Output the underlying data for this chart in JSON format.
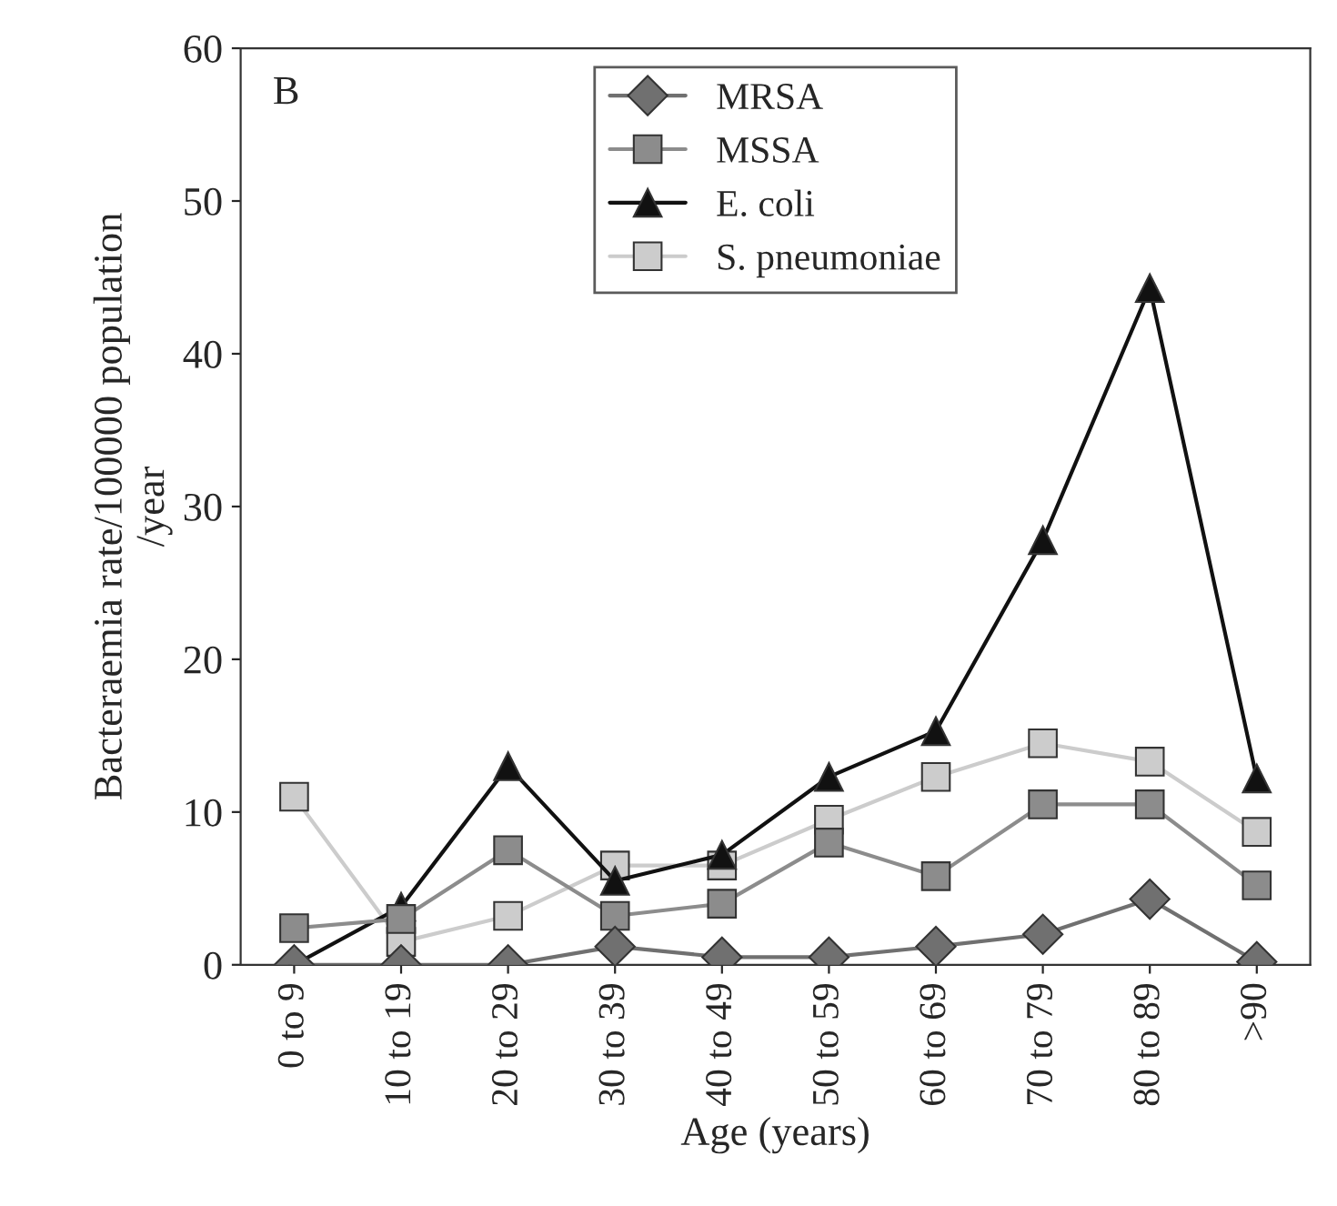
{
  "chart_data": {
    "type": "line",
    "xlabel": "Age (years)",
    "ylabel": "Bacteraemia rate/100000 population\n/year",
    "annotations": [
      "B"
    ],
    "categories": [
      "0 to 9",
      "10 to 19",
      "20 to 29",
      "30 to 39",
      "40 to 49",
      "50 to 59",
      "60 to 69",
      "70 to 79",
      "80 to 89",
      ">90"
    ],
    "series": [
      {
        "name": "MRSA",
        "color": "#707070",
        "marker": "diamond",
        "values": [
          0,
          0,
          0,
          1.2,
          0.5,
          0.5,
          1.2,
          2,
          4.3,
          0.2
        ]
      },
      {
        "name": "MSSA",
        "color": "#8c8c8c",
        "marker": "square",
        "values": [
          2.4,
          3,
          7.5,
          3.2,
          4,
          8,
          5.8,
          10.5,
          10.5,
          5.2
        ]
      },
      {
        "name": "E. coli",
        "color": "#111111",
        "marker": "triangle",
        "values": [
          0,
          3.8,
          13,
          5.5,
          7.2,
          12.3,
          15.3,
          27.8,
          44.3,
          12.2
        ]
      },
      {
        "name": "S. pneumoniae",
        "color": "#cccccc",
        "marker": "square",
        "values": [
          11,
          1.5,
          3.2,
          6.5,
          6.5,
          9.5,
          12.3,
          14.5,
          13.3,
          8.7
        ]
      }
    ],
    "ylim": [
      0,
      60
    ],
    "yticks": [
      0,
      10,
      20,
      30,
      40,
      50,
      60
    ],
    "grid": false,
    "legend": "top"
  }
}
